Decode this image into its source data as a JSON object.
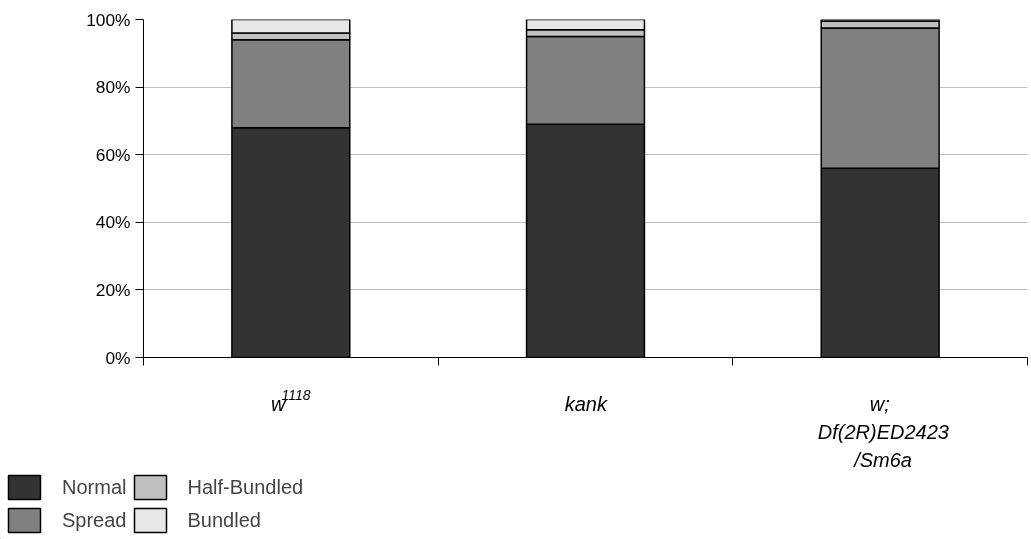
{
  "chart_data": {
    "type": "bar",
    "stacked": true,
    "categories": [
      "w$^{1118}$",
      "kank",
      "w;\nDf(2R)ED2423\n/Sm6a"
    ],
    "series": [
      {
        "name": "Normal",
        "color": "#333333",
        "values": [
          68,
          69,
          56
        ]
      },
      {
        "name": "Spread",
        "color": "#808080",
        "values": [
          26,
          26,
          41.5
        ]
      },
      {
        "name": "Half-Bundled",
        "color": "#c0c0c0",
        "values": [
          2,
          2,
          2
        ]
      },
      {
        "name": "Bundled",
        "color": "#e6e6e6",
        "values": [
          4,
          3,
          0.5
        ]
      }
    ],
    "ylim": [
      0,
      100
    ],
    "yticks": [
      {
        "value": 0,
        "label": "0%"
      },
      {
        "value": 20,
        "label": "20%"
      },
      {
        "value": 40,
        "label": "40%"
      },
      {
        "value": 60,
        "label": "60%"
      },
      {
        "value": 80,
        "label": "80%"
      },
      {
        "value": 100,
        "label": "100%"
      }
    ],
    "grid": "y",
    "legend": "bottom left"
  }
}
